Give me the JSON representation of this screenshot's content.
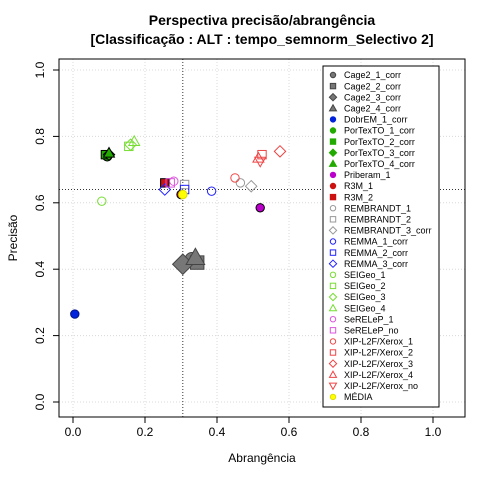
{
  "chart_data": {
    "type": "scatter",
    "title": "Perspectiva precisão/abrangência",
    "subtitle": "[Classificação : ALT : tempo_semnorm_Selectivo 2]",
    "xlabel": "Abrangência",
    "ylabel": "Precisão",
    "xlim": [
      0,
      1
    ],
    "ylim": [
      0,
      1
    ],
    "x_ticks": [
      "0.0",
      "0.2",
      "0.4",
      "0.6",
      "0.8",
      "1.0"
    ],
    "y_ticks": [
      "0.0",
      "0.2",
      "0.4",
      "0.6",
      "0.8",
      "1.0"
    ],
    "grid": true,
    "legend_position": "top-right",
    "reference_lines": {
      "x": 0.305,
      "y": 0.64
    },
    "series": [
      {
        "name": "Cage2_1_corr",
        "shape": "circle",
        "filled": true,
        "color": "#777777",
        "x": 0.33,
        "y": 0.43,
        "size": 1.6
      },
      {
        "name": "Cage2_2_corr",
        "shape": "square",
        "filled": true,
        "color": "#777777",
        "x": 0.345,
        "y": 0.42,
        "size": 1.6
      },
      {
        "name": "Cage2_3_corr",
        "shape": "diamond",
        "filled": true,
        "color": "#777777",
        "x": 0.305,
        "y": 0.415,
        "size": 1.8
      },
      {
        "name": "Cage2_4_corr",
        "shape": "triangle-up",
        "filled": true,
        "color": "#777777",
        "x": 0.34,
        "y": 0.435,
        "size": 1.7
      },
      {
        "name": "DobrEM_1_corr",
        "shape": "circle",
        "filled": true,
        "color": "#0022dd",
        "x": 0.005,
        "y": 0.265,
        "size": 1
      },
      {
        "name": "PorTexTO_1_corr",
        "shape": "circle",
        "filled": true,
        "color": "#22aa00",
        "x": 0.095,
        "y": 0.74,
        "size": 1.1
      },
      {
        "name": "PorTexTO_2_corr",
        "shape": "square",
        "filled": true,
        "color": "#22aa00",
        "x": 0.09,
        "y": 0.745,
        "size": 1
      },
      {
        "name": "PorTexTO_3_corr",
        "shape": "diamond",
        "filled": true,
        "color": "#22aa00",
        "x": 0.1,
        "y": 0.745,
        "size": 1
      },
      {
        "name": "PorTexTO_4_corr",
        "shape": "triangle-up",
        "filled": true,
        "color": "#22aa00",
        "x": 0.1,
        "y": 0.75,
        "size": 1
      },
      {
        "name": "Priberam_1",
        "shape": "circle",
        "filled": true,
        "color": "#bb00cc",
        "x": 0.52,
        "y": 0.585,
        "size": 1
      },
      {
        "name": "R3M_1",
        "shape": "circle",
        "filled": true,
        "color": "#cc1111",
        "x": 0.3,
        "y": 0.625,
        "size": 1
      },
      {
        "name": "R3M_2",
        "shape": "square",
        "filled": true,
        "color": "#cc1111",
        "x": 0.255,
        "y": 0.66,
        "size": 1
      },
      {
        "name": "REMBRANDT_1",
        "shape": "circle",
        "filled": false,
        "color": "#999999",
        "x": 0.465,
        "y": 0.66,
        "size": 1
      },
      {
        "name": "REMBRANDT_2",
        "shape": "square",
        "filled": false,
        "color": "#999999",
        "x": 0.31,
        "y": 0.655,
        "size": 1
      },
      {
        "name": "REMBRANDT_3_corr",
        "shape": "diamond",
        "filled": false,
        "color": "#999999",
        "x": 0.495,
        "y": 0.65,
        "size": 1
      },
      {
        "name": "REMMA_1_corr",
        "shape": "circle",
        "filled": false,
        "color": "#2222ff",
        "x": 0.385,
        "y": 0.635,
        "size": 1
      },
      {
        "name": "REMMA_2_corr",
        "shape": "square",
        "filled": false,
        "color": "#2222ff",
        "x": 0.31,
        "y": 0.64,
        "size": 1
      },
      {
        "name": "REMMA_3_corr",
        "shape": "diamond",
        "filled": false,
        "color": "#2222ff",
        "x": 0.255,
        "y": 0.64,
        "size": 1
      },
      {
        "name": "SEIGeo_1",
        "shape": "circle",
        "filled": false,
        "color": "#77dd33",
        "x": 0.08,
        "y": 0.605,
        "size": 1
      },
      {
        "name": "SEIGeo_2",
        "shape": "square",
        "filled": false,
        "color": "#77dd33",
        "x": 0.155,
        "y": 0.77,
        "size": 1
      },
      {
        "name": "SEIGeo_3",
        "shape": "diamond",
        "filled": false,
        "color": "#77dd33",
        "x": 0.16,
        "y": 0.775,
        "size": 1
      },
      {
        "name": "SEIGeo_4",
        "shape": "triangle-up",
        "filled": false,
        "color": "#77dd33",
        "x": 0.17,
        "y": 0.785,
        "size": 1
      },
      {
        "name": "SeRELeP_1",
        "shape": "circle",
        "filled": false,
        "color": "#dd55dd",
        "x": 0.28,
        "y": 0.665,
        "size": 1
      },
      {
        "name": "SeRELeP_no",
        "shape": "square",
        "filled": false,
        "color": "#dd55dd",
        "x": 0.27,
        "y": 0.66,
        "size": 1
      },
      {
        "name": "XIP-L2F/Xerox_1",
        "shape": "circle",
        "filled": false,
        "color": "#ee4444",
        "x": 0.45,
        "y": 0.675,
        "size": 1
      },
      {
        "name": "XIP-L2F/Xerox_2",
        "shape": "square",
        "filled": false,
        "color": "#ee4444",
        "x": 0.525,
        "y": 0.745,
        "size": 1
      },
      {
        "name": "XIP-L2F/Xerox_3",
        "shape": "diamond",
        "filled": false,
        "color": "#ee4444",
        "x": 0.575,
        "y": 0.755,
        "size": 1
      },
      {
        "name": "XIP-L2F/Xerox_4",
        "shape": "triangle-up",
        "filled": false,
        "color": "#ee4444",
        "x": 0.515,
        "y": 0.735,
        "size": 1
      },
      {
        "name": "XIP-L2F/Xerox_no",
        "shape": "triangle-down",
        "filled": false,
        "color": "#ee4444",
        "x": 0.52,
        "y": 0.725,
        "size": 1
      },
      {
        "name": "MÉDIA",
        "shape": "circle",
        "filled": true,
        "color": "#ffff00",
        "x": 0.305,
        "y": 0.625,
        "size": 1
      }
    ]
  }
}
